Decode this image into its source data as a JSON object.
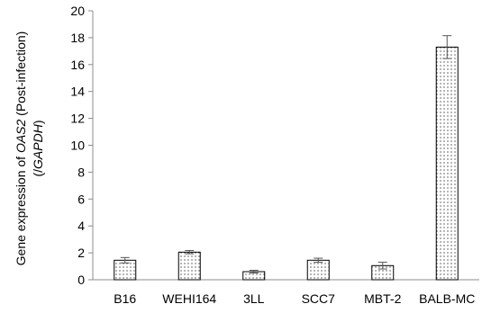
{
  "chart_data": {
    "type": "bar",
    "title": "",
    "xlabel": "",
    "ylabel": {
      "line1_prefix": "Gene expression of ",
      "line1_gene": "OAS2",
      "line1_suffix": " (Post-infection)",
      "line2_open": "(/",
      "line2_gene": "GAPDH",
      "line2_close": ")"
    },
    "categories": [
      "B16",
      "WEHI164",
      "3LL",
      "SCC7",
      "MBT-2",
      "BALB-MC"
    ],
    "values": [
      1.45,
      2.05,
      0.6,
      1.45,
      1.05,
      17.3
    ],
    "errors": [
      0.2,
      0.12,
      0.1,
      0.15,
      0.25,
      0.85
    ],
    "ylim": [
      0,
      20
    ],
    "yticks": [
      0,
      2,
      4,
      6,
      8,
      10,
      12,
      14,
      16,
      18,
      20
    ],
    "grid": false,
    "legend": "none",
    "bar_fill": "dotted",
    "colors": {
      "axis": "#8c8c8c",
      "bar_edge": "#000000",
      "dots": "#000000",
      "error": "#555555"
    }
  }
}
